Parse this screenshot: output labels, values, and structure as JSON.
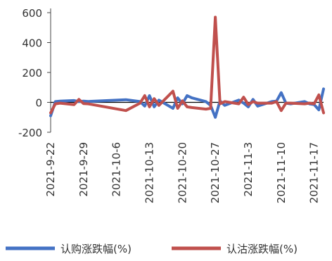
{
  "chart_data": {
    "type": "line",
    "title": "",
    "xlabel": "",
    "ylabel": "",
    "ylim": [
      -200,
      600
    ],
    "yticks": [
      -200,
      0,
      200,
      400,
      600
    ],
    "grid": false,
    "legend_position": "bottom",
    "x_tick_labels": [
      "2021-9-22",
      "2021-9-29",
      "2021-10-6",
      "2021-10-13",
      "2021-10-20",
      "2021-10-27",
      "2021-11-3",
      "2021-11-10",
      "2021-11-17"
    ],
    "x_range": [
      "2021-09-22",
      "2021-11-19"
    ],
    "series": [
      {
        "name": "认购涨跌幅(%)",
        "color": "#4472C4",
        "points": [
          [
            "2021-09-22",
            -90
          ],
          [
            "2021-09-23",
            5
          ],
          [
            "2021-09-24",
            8
          ],
          [
            "2021-09-27",
            12
          ],
          [
            "2021-09-28",
            5
          ],
          [
            "2021-09-29",
            8
          ],
          [
            "2021-09-30",
            6
          ],
          [
            "2021-10-08",
            18
          ],
          [
            "2021-10-11",
            5
          ],
          [
            "2021-10-12",
            -25
          ],
          [
            "2021-10-13",
            45
          ],
          [
            "2021-10-14",
            -30
          ],
          [
            "2021-10-15",
            15
          ],
          [
            "2021-10-18",
            -40
          ],
          [
            "2021-10-19",
            30
          ],
          [
            "2021-10-20",
            -10
          ],
          [
            "2021-10-21",
            45
          ],
          [
            "2021-10-22",
            30
          ],
          [
            "2021-10-25",
            5
          ],
          [
            "2021-10-26",
            -20
          ],
          [
            "2021-10-27",
            -100
          ],
          [
            "2021-10-28",
            10
          ],
          [
            "2021-10-29",
            -20
          ],
          [
            "2021-11-01",
            15
          ],
          [
            "2021-11-02",
            -5
          ],
          [
            "2021-11-03",
            -30
          ],
          [
            "2021-11-04",
            20
          ],
          [
            "2021-11-05",
            -25
          ],
          [
            "2021-11-08",
            5
          ],
          [
            "2021-11-09",
            8
          ],
          [
            "2021-11-10",
            65
          ],
          [
            "2021-11-11",
            -5
          ],
          [
            "2021-11-12",
            -10
          ],
          [
            "2021-11-15",
            5
          ],
          [
            "2021-11-16",
            -10
          ],
          [
            "2021-11-17",
            -15
          ],
          [
            "2021-11-18",
            -50
          ],
          [
            "2021-11-19",
            90
          ]
        ]
      },
      {
        "name": "认沽涨跌幅(%)",
        "color": "#C0504D",
        "points": [
          [
            "2021-09-22",
            -70
          ],
          [
            "2021-09-23",
            -10
          ],
          [
            "2021-09-24",
            -5
          ],
          [
            "2021-09-27",
            -15
          ],
          [
            "2021-09-28",
            20
          ],
          [
            "2021-09-29",
            -8
          ],
          [
            "2021-09-30",
            -10
          ],
          [
            "2021-10-08",
            -55
          ],
          [
            "2021-10-11",
            -5
          ],
          [
            "2021-10-12",
            45
          ],
          [
            "2021-10-13",
            -30
          ],
          [
            "2021-10-14",
            25
          ],
          [
            "2021-10-15",
            -20
          ],
          [
            "2021-10-18",
            75
          ],
          [
            "2021-10-19",
            -40
          ],
          [
            "2021-10-20",
            10
          ],
          [
            "2021-10-21",
            -30
          ],
          [
            "2021-10-22",
            -35
          ],
          [
            "2021-10-25",
            -45
          ],
          [
            "2021-10-26",
            -40
          ],
          [
            "2021-10-27",
            570
          ],
          [
            "2021-10-28",
            -10
          ],
          [
            "2021-10-29",
            5
          ],
          [
            "2021-11-01",
            -10
          ],
          [
            "2021-11-02",
            35
          ],
          [
            "2021-11-03",
            -15
          ],
          [
            "2021-11-04",
            5
          ],
          [
            "2021-11-05",
            -5
          ],
          [
            "2021-11-08",
            -5
          ],
          [
            "2021-11-09",
            5
          ],
          [
            "2021-11-10",
            -55
          ],
          [
            "2021-11-11",
            -5
          ],
          [
            "2021-11-12",
            -5
          ],
          [
            "2021-11-15",
            -10
          ],
          [
            "2021-11-16",
            -5
          ],
          [
            "2021-11-17",
            -10
          ],
          [
            "2021-11-18",
            50
          ],
          [
            "2021-11-19",
            -70
          ]
        ]
      }
    ]
  }
}
